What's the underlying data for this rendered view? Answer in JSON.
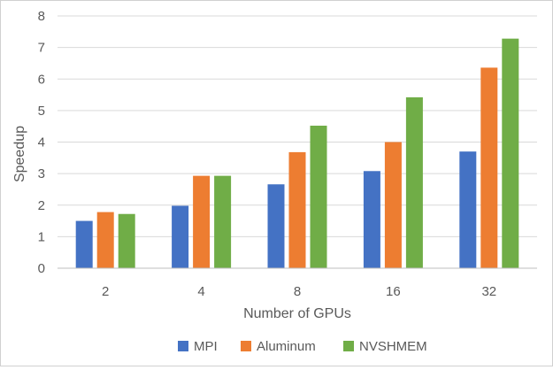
{
  "chart_data": {
    "type": "bar",
    "title": "",
    "xlabel": "Number of GPUs",
    "ylabel": "Speedup",
    "categories": [
      "2",
      "4",
      "8",
      "16",
      "32"
    ],
    "ylim": [
      0,
      8
    ],
    "yticks": [
      "0",
      "1",
      "2",
      "3",
      "4",
      "5",
      "6",
      "7",
      "8"
    ],
    "grid": true,
    "legend_position": "bottom",
    "series": [
      {
        "name": "MPI",
        "color": "#4472c4",
        "values": [
          1.5,
          1.98,
          2.66,
          3.08,
          3.7
        ]
      },
      {
        "name": "Aluminum",
        "color": "#ed7d31",
        "values": [
          1.78,
          2.93,
          3.68,
          4.0,
          6.36
        ]
      },
      {
        "name": "NVSHMEM",
        "color": "#70ad47",
        "values": [
          1.72,
          2.93,
          4.52,
          5.42,
          7.28
        ]
      }
    ]
  }
}
